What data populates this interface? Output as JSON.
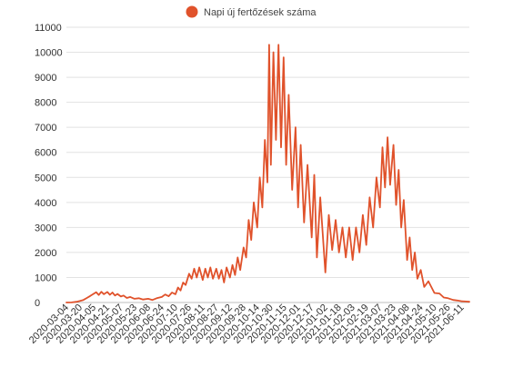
{
  "chart_data": {
    "type": "line",
    "title": "",
    "xlabel": "",
    "ylabel": "",
    "legend": {
      "position": "top-center",
      "entries": [
        {
          "name": "Napi új fertőzések száma",
          "color": "#E0522B"
        }
      ]
    },
    "grid": {
      "horizontal": true,
      "vertical": false
    },
    "ylim": [
      0,
      11000
    ],
    "yticks": [
      0,
      1000,
      2000,
      3000,
      4000,
      5000,
      6000,
      7000,
      8000,
      9000,
      10000,
      11000
    ],
    "xlim": [
      "2020-03-04",
      "2021-06-20"
    ],
    "xticks": [
      "2020-03-04",
      "2020-03-20",
      "2020-04-05",
      "2020-04-21",
      "2020-05-07",
      "2020-05-23",
      "2020-06-08",
      "2020-06-24",
      "2020-07-10",
      "2020-07-26",
      "2020-08-11",
      "2020-08-27",
      "2020-09-12",
      "2020-09-28",
      "2020-10-14",
      "2020-10-30",
      "2020-11-15",
      "2020-12-01",
      "2020-12-17",
      "2021-01-02",
      "2021-01-18",
      "2021-02-03",
      "2021-02-19",
      "2021-03-07",
      "2021-03-23",
      "2021-04-08",
      "2021-04-24",
      "2021-05-10",
      "2021-05-26",
      "2021-06-11"
    ],
    "series": [
      {
        "name": "Napi új fertőzések száma",
        "color": "#E0522B",
        "points": [
          [
            "2020-03-04",
            0
          ],
          [
            "2020-03-10",
            5
          ],
          [
            "2020-03-16",
            30
          ],
          [
            "2020-03-20",
            60
          ],
          [
            "2020-03-24",
            100
          ],
          [
            "2020-03-28",
            180
          ],
          [
            "2020-04-01",
            260
          ],
          [
            "2020-04-05",
            350
          ],
          [
            "2020-04-08",
            410
          ],
          [
            "2020-04-11",
            300
          ],
          [
            "2020-04-14",
            430
          ],
          [
            "2020-04-17",
            330
          ],
          [
            "2020-04-21",
            420
          ],
          [
            "2020-04-24",
            310
          ],
          [
            "2020-04-27",
            400
          ],
          [
            "2020-04-30",
            280
          ],
          [
            "2020-05-03",
            340
          ],
          [
            "2020-05-07",
            240
          ],
          [
            "2020-05-10",
            280
          ],
          [
            "2020-05-14",
            180
          ],
          [
            "2020-05-18",
            220
          ],
          [
            "2020-05-23",
            150
          ],
          [
            "2020-05-28",
            170
          ],
          [
            "2020-06-02",
            120
          ],
          [
            "2020-06-08",
            150
          ],
          [
            "2020-06-13",
            100
          ],
          [
            "2020-06-18",
            170
          ],
          [
            "2020-06-24",
            220
          ],
          [
            "2020-06-28",
            320
          ],
          [
            "2020-07-02",
            250
          ],
          [
            "2020-07-06",
            400
          ],
          [
            "2020-07-10",
            330
          ],
          [
            "2020-07-13",
            600
          ],
          [
            "2020-07-16",
            480
          ],
          [
            "2020-07-19",
            800
          ],
          [
            "2020-07-22",
            700
          ],
          [
            "2020-07-26",
            1150
          ],
          [
            "2020-07-29",
            950
          ],
          [
            "2020-08-01",
            1350
          ],
          [
            "2020-08-04",
            1000
          ],
          [
            "2020-08-07",
            1400
          ],
          [
            "2020-08-11",
            900
          ],
          [
            "2020-08-14",
            1350
          ],
          [
            "2020-08-17",
            1000
          ],
          [
            "2020-08-20",
            1400
          ],
          [
            "2020-08-23",
            950
          ],
          [
            "2020-08-27",
            1350
          ],
          [
            "2020-08-30",
            950
          ],
          [
            "2020-09-02",
            1300
          ],
          [
            "2020-09-05",
            800
          ],
          [
            "2020-09-08",
            1400
          ],
          [
            "2020-09-12",
            1000
          ],
          [
            "2020-09-15",
            1500
          ],
          [
            "2020-09-18",
            1100
          ],
          [
            "2020-09-21",
            1800
          ],
          [
            "2020-09-24",
            1300
          ],
          [
            "2020-09-28",
            2200
          ],
          [
            "2020-10-01",
            1800
          ],
          [
            "2020-10-04",
            3300
          ],
          [
            "2020-10-07",
            2500
          ],
          [
            "2020-10-10",
            4000
          ],
          [
            "2020-10-14",
            3000
          ],
          [
            "2020-10-17",
            5000
          ],
          [
            "2020-10-20",
            3800
          ],
          [
            "2020-10-23",
            6500
          ],
          [
            "2020-10-26",
            4800
          ],
          [
            "2020-10-28",
            10300
          ],
          [
            "2020-10-30",
            5500
          ],
          [
            "2020-11-02",
            10000
          ],
          [
            "2020-11-05",
            6500
          ],
          [
            "2020-11-08",
            10300
          ],
          [
            "2020-11-11",
            6200
          ],
          [
            "2020-11-14",
            9800
          ],
          [
            "2020-11-17",
            5500
          ],
          [
            "2020-11-20",
            8300
          ],
          [
            "2020-11-24",
            4500
          ],
          [
            "2020-11-28",
            7000
          ],
          [
            "2020-12-01",
            3800
          ],
          [
            "2020-12-04",
            6300
          ],
          [
            "2020-12-08",
            3200
          ],
          [
            "2020-12-12",
            5500
          ],
          [
            "2020-12-17",
            2600
          ],
          [
            "2020-12-20",
            5100
          ],
          [
            "2020-12-23",
            1800
          ],
          [
            "2020-12-27",
            4200
          ],
          [
            "2021-01-02",
            1200
          ],
          [
            "2021-01-06",
            3500
          ],
          [
            "2021-01-10",
            2100
          ],
          [
            "2021-01-14",
            3300
          ],
          [
            "2021-01-18",
            2000
          ],
          [
            "2021-01-22",
            3000
          ],
          [
            "2021-01-26",
            1800
          ],
          [
            "2021-01-30",
            3000
          ],
          [
            "2021-02-03",
            1700
          ],
          [
            "2021-02-07",
            3000
          ],
          [
            "2021-02-11",
            2000
          ],
          [
            "2021-02-15",
            3500
          ],
          [
            "2021-02-19",
            2300
          ],
          [
            "2021-02-23",
            4200
          ],
          [
            "2021-02-27",
            3000
          ],
          [
            "2021-03-03",
            5000
          ],
          [
            "2021-03-07",
            3800
          ],
          [
            "2021-03-10",
            6200
          ],
          [
            "2021-03-13",
            4600
          ],
          [
            "2021-03-16",
            6600
          ],
          [
            "2021-03-19",
            4700
          ],
          [
            "2021-03-23",
            6300
          ],
          [
            "2021-03-26",
            3900
          ],
          [
            "2021-03-29",
            5300
          ],
          [
            "2021-04-01",
            3000
          ],
          [
            "2021-04-04",
            4100
          ],
          [
            "2021-04-08",
            1700
          ],
          [
            "2021-04-11",
            2600
          ],
          [
            "2021-04-14",
            1300
          ],
          [
            "2021-04-17",
            2000
          ],
          [
            "2021-04-20",
            950
          ],
          [
            "2021-04-24",
            1300
          ],
          [
            "2021-04-28",
            620
          ],
          [
            "2021-05-03",
            850
          ],
          [
            "2021-05-10",
            380
          ],
          [
            "2021-05-16",
            360
          ],
          [
            "2021-05-21",
            200
          ],
          [
            "2021-05-26",
            170
          ],
          [
            "2021-06-01",
            100
          ],
          [
            "2021-06-06",
            80
          ],
          [
            "2021-06-11",
            50
          ],
          [
            "2021-06-16",
            40
          ],
          [
            "2021-06-20",
            30
          ]
        ]
      }
    ]
  }
}
